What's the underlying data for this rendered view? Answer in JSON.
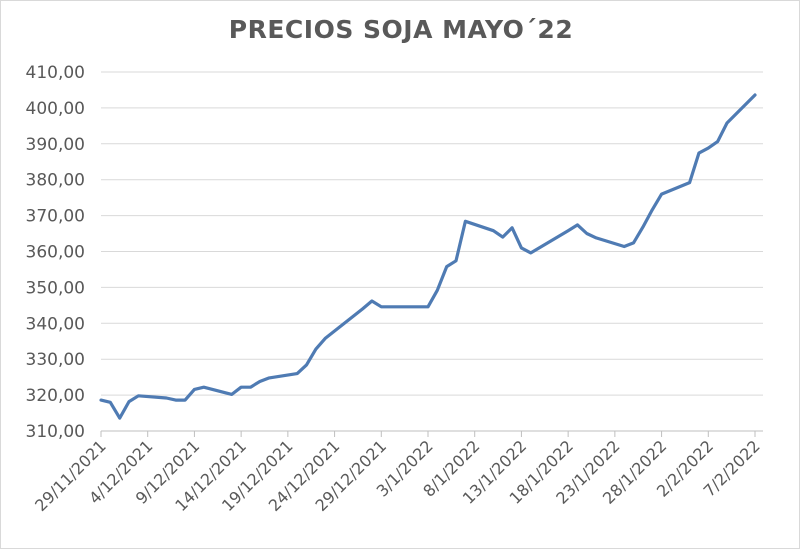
{
  "chart_data": {
    "type": "line",
    "title": "PRECIOS SOJA MAYO´22",
    "xlabel": "",
    "ylabel": "",
    "ylim": [
      310,
      410
    ],
    "y_ticks": [
      "310,00",
      "320,00",
      "330,00",
      "340,00",
      "350,00",
      "360,00",
      "370,00",
      "380,00",
      "390,00",
      "400,00",
      "410,00"
    ],
    "x_ticks": [
      "29/11/2021",
      "4/12/2021",
      "9/12/2021",
      "14/12/2021",
      "19/12/2021",
      "24/12/2021",
      "29/12/2021",
      "3/1/2022",
      "8/1/2022",
      "13/1/2022",
      "18/1/2022",
      "23/1/2022",
      "28/1/2022",
      "2/2/2022",
      "7/2/2022"
    ],
    "grid": true,
    "legend": "none",
    "colors": {
      "line": "#4f7bb3",
      "grid": "#d9d9d9",
      "text": "#595959"
    },
    "series": [
      {
        "x": [
          "29/11/2021",
          "30/11/2021",
          "1/12/2021",
          "2/12/2021",
          "3/12/2021",
          "6/12/2021",
          "7/12/2021",
          "8/12/2021",
          "9/12/2021",
          "10/12/2021",
          "13/12/2021",
          "14/12/2021",
          "15/12/2021",
          "16/12/2021",
          "17/12/2021",
          "20/12/2021",
          "21/12/2021",
          "22/12/2021",
          "23/12/2021",
          "27/12/2021",
          "28/12/2021",
          "29/12/2021",
          "30/12/2021",
          "31/12/2021",
          "3/1/2022",
          "4/1/2022",
          "5/1/2022",
          "6/1/2022",
          "7/1/2022",
          "10/1/2022",
          "11/1/2022",
          "12/1/2022",
          "13/1/2022",
          "14/1/2022",
          "18/1/2022",
          "19/1/2022",
          "20/1/2022",
          "21/1/2022",
          "24/1/2022",
          "25/1/2022",
          "26/1/2022",
          "27/1/2022",
          "28/1/2022",
          "31/1/2022",
          "1/2/2022",
          "2/2/2022",
          "3/2/2022",
          "4/2/2022",
          "7/2/2022"
        ],
        "values": [
          318.6,
          318.0,
          313.6,
          318.2,
          319.8,
          319.2,
          318.6,
          318.6,
          321.6,
          322.2,
          320.2,
          322.2,
          322.2,
          323.8,
          324.8,
          326.0,
          328.4,
          332.8,
          335.8,
          344.0,
          346.2,
          344.6,
          344.6,
          344.6,
          344.6,
          349.2,
          355.8,
          357.4,
          368.4,
          365.8,
          364.0,
          366.6,
          361.0,
          359.6,
          365.8,
          367.4,
          365.0,
          363.8,
          361.4,
          362.4,
          366.8,
          371.6,
          376.0,
          379.2,
          387.4,
          388.8,
          390.6,
          395.8,
          403.6
        ]
      }
    ]
  }
}
